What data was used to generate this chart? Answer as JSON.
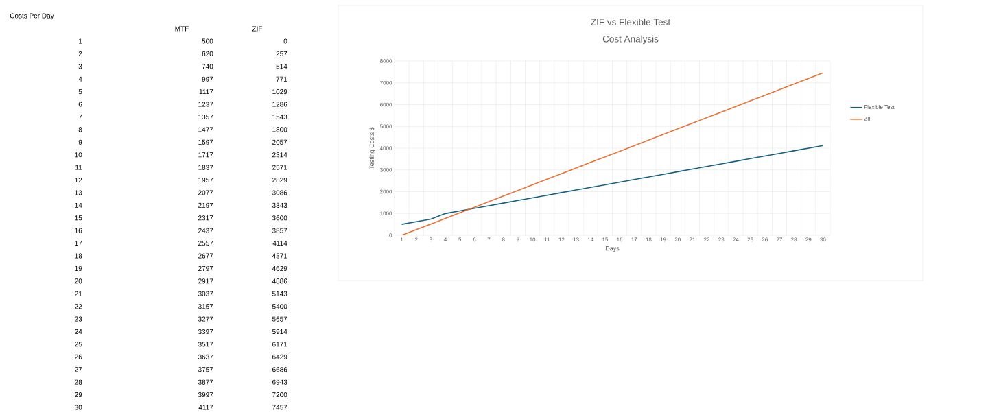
{
  "chart_data": [
    {
      "type": "heatmap",
      "title": "Costs Per Day",
      "categories": [
        "MTF",
        "ZIF"
      ],
      "y_categories": [
        "1",
        "2",
        "3",
        "4",
        "5",
        "6",
        "7",
        "8",
        "9",
        "10",
        "11",
        "12",
        "13",
        "14",
        "15",
        "16",
        "17",
        "18",
        "19",
        "20",
        "21",
        "22",
        "23",
        "24",
        "25",
        "26",
        "27",
        "28",
        "29",
        "30"
      ],
      "cells": [
        [
          500,
          0
        ],
        [
          620,
          257
        ],
        [
          740,
          514
        ],
        [
          997,
          771
        ],
        [
          1117,
          1029
        ],
        [
          1237,
          1286
        ],
        [
          1357,
          1543
        ],
        [
          1477,
          1800
        ],
        [
          1597,
          2057
        ],
        [
          1717,
          2314
        ],
        [
          1837,
          2571
        ],
        [
          1957,
          2829
        ],
        [
          2077,
          3086
        ],
        [
          2197,
          3343
        ],
        [
          2317,
          3600
        ],
        [
          2437,
          3857
        ],
        [
          2557,
          4114
        ],
        [
          2677,
          4371
        ],
        [
          2797,
          4629
        ],
        [
          2917,
          4886
        ],
        [
          3037,
          5143
        ],
        [
          3157,
          5400
        ],
        [
          3277,
          5657
        ],
        [
          3397,
          5914
        ],
        [
          3517,
          6171
        ],
        [
          3637,
          6429
        ],
        [
          3757,
          6686
        ],
        [
          3877,
          6943
        ],
        [
          3997,
          7200
        ],
        [
          4117,
          7457
        ]
      ],
      "data_labels": true
    },
    {
      "type": "line",
      "title": "ZIF vs Flexible Test",
      "subtitle": "Cost Analysis",
      "xlabel": "Days",
      "ylabel": "Testing Costs $",
      "categories": [
        "1",
        "2",
        "3",
        "4",
        "5",
        "6",
        "7",
        "8",
        "9",
        "10",
        "11",
        "12",
        "13",
        "14",
        "15",
        "16",
        "17",
        "18",
        "19",
        "20",
        "21",
        "22",
        "23",
        "24",
        "25",
        "26",
        "27",
        "28",
        "29",
        "30"
      ],
      "series": [
        {
          "name": "Flexible Test",
          "color": "#156082",
          "values": [
            500,
            620,
            740,
            997,
            1117,
            1237,
            1357,
            1477,
            1597,
            1717,
            1837,
            1957,
            2077,
            2197,
            2317,
            2437,
            2557,
            2677,
            2797,
            2917,
            3037,
            3157,
            3277,
            3397,
            3517,
            3637,
            3757,
            3877,
            3997,
            4117
          ]
        },
        {
          "name": "ZIF",
          "color": "#e97132",
          "values": [
            0,
            257,
            514,
            771,
            1029,
            1286,
            1543,
            1800,
            2057,
            2314,
            2571,
            2829,
            3086,
            3343,
            3600,
            3857,
            4114,
            4371,
            4629,
            4886,
            5143,
            5400,
            5657,
            5914,
            6171,
            6429,
            6686,
            6943,
            7200,
            7457
          ]
        }
      ],
      "ylim": [
        0,
        8000
      ],
      "yticks": [
        0,
        1000,
        2000,
        3000,
        4000,
        5000,
        6000,
        7000,
        8000
      ],
      "grid": true,
      "legend": "right",
      "marker": "none",
      "line_style": "solid"
    }
  ]
}
